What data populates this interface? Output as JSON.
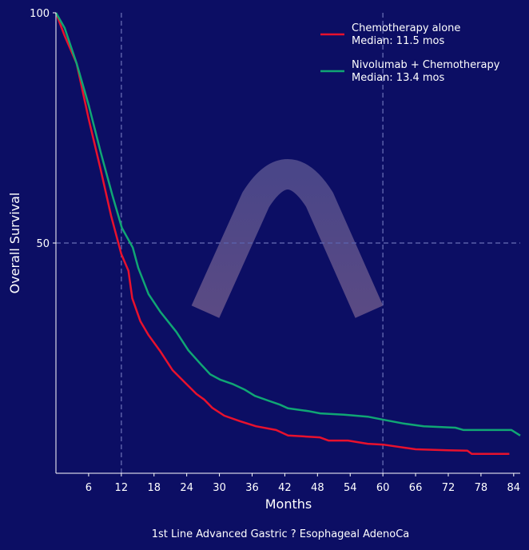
{
  "chart_data": {
    "type": "line",
    "title": "",
    "caption": "1st Line Advanced Gastric ? Esophageal AdenoCa",
    "xlabel": "Months",
    "ylabel": "Overall Survival",
    "xlim": [
      0,
      85.2
    ],
    "ylim": [
      0,
      100
    ],
    "xticks": [
      6,
      12,
      18,
      24,
      30,
      36,
      42,
      48,
      54,
      60,
      66,
      72,
      78,
      84
    ],
    "yticks": [
      50,
      100
    ],
    "reference_lines": {
      "x": [
        12,
        60
      ],
      "y": [
        50
      ]
    },
    "legend_position": "top-right",
    "colors": {
      "background": "#0c0e64",
      "reference": "#5a5fa8",
      "watermark": "#4c4588"
    },
    "series": [
      {
        "name": "Chemotherapy alone",
        "legend_sub": "Median: 11.5 mos",
        "color": "#e8112d",
        "x": [
          0,
          1.6,
          3.8,
          6,
          8.2,
          10.1,
          12,
          13.3,
          14,
          15.5,
          17,
          19.2,
          21.4,
          23.6,
          25.8,
          27.2,
          28.7,
          30.9,
          33.8,
          36.7,
          40.4,
          42.6,
          45.5,
          48.4,
          50,
          53.6,
          57.2,
          60.2,
          63.1,
          66,
          71.9,
          75.5,
          76.3,
          83.2
        ],
        "y": [
          100,
          95,
          89,
          77,
          66,
          56,
          47.6,
          44,
          38,
          33,
          30,
          26.4,
          22.4,
          19.8,
          17.2,
          16,
          14.2,
          12.5,
          11.3,
          10.2,
          9.4,
          8.2,
          8,
          7.8,
          7.1,
          7.1,
          6.4,
          6.2,
          5.7,
          5.2,
          5,
          4.9,
          4.2,
          4.2
        ]
      },
      {
        "name": "Nivolumab + Chemotherapy",
        "legend_sub": "Median: 13.4 mos",
        "color": "#10a674",
        "x": [
          0,
          1.6,
          3.8,
          6,
          8.2,
          10.4,
          12.1,
          14.1,
          15.1,
          17,
          19.2,
          22.1,
          24.3,
          26.5,
          28.3,
          30.2,
          32.4,
          34.6,
          36.5,
          38.9,
          41.1,
          42.6,
          46.3,
          48.5,
          52.9,
          57.2,
          60.2,
          63.8,
          67.5,
          73.3,
          74.8,
          83.6,
          85.2
        ],
        "y": [
          100,
          96.7,
          89,
          80,
          69.8,
          60.2,
          53.3,
          49,
          44.6,
          38.9,
          35,
          30.7,
          26.7,
          23.8,
          21.5,
          20.3,
          19.4,
          18.2,
          16.8,
          15.8,
          14.9,
          14.1,
          13.5,
          13,
          12.7,
          12.3,
          11.6,
          10.8,
          10.2,
          9.9,
          9.4,
          9.4,
          8.2
        ]
      }
    ]
  }
}
